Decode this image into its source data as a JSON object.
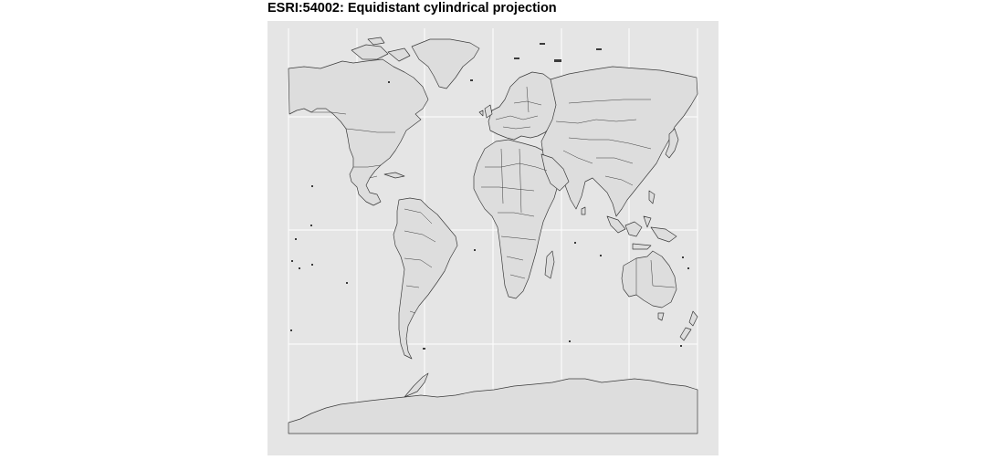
{
  "title": "ESRI:54002: Equidistant cylindrical projection",
  "map": {
    "projection": "ESRI:54002",
    "graticule": {
      "meridians": [
        -135,
        -90,
        -45,
        0,
        45,
        90,
        135
      ],
      "parallels": [
        -60,
        -30,
        0,
        30,
        60
      ]
    },
    "colors": {
      "panel": "#e5e5e5",
      "grid": "#ffffff",
      "land": "#dddddd",
      "border": "#3b3b3b"
    }
  }
}
